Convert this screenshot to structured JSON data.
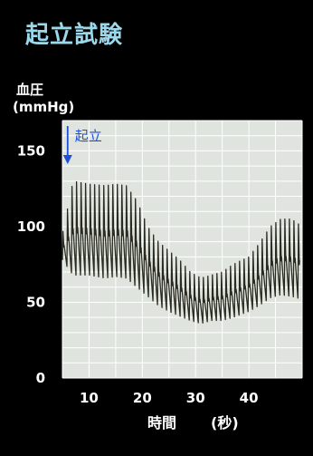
{
  "title": "起立試験",
  "colors": {
    "background": "#000000",
    "title": "#9cd8ec",
    "plot_background": "#dfe4df",
    "grid": "#ffffff",
    "trace": "#2a2a20",
    "annotation": "#1f4fd8"
  },
  "chart_data": {
    "type": "line",
    "ylabel_line1": "血圧",
    "ylabel_line2": "(mmHg)",
    "xlabel": "時間",
    "xunit": "(秒)",
    "xlim": [
      5,
      50
    ],
    "ylim": [
      0,
      170
    ],
    "xticks": [
      10,
      20,
      30,
      40
    ],
    "yticks": [
      0,
      50,
      100,
      150
    ],
    "grid": true,
    "annotation": {
      "text": "起立",
      "x": 7,
      "arrow": "down"
    },
    "series": [
      {
        "type": "pulsatile-envelope",
        "x_envelope": [
          5,
          7,
          10,
          13,
          15,
          17,
          19,
          21,
          23,
          25,
          27,
          29,
          31,
          33,
          35,
          37,
          40,
          42,
          44,
          46,
          48,
          50
        ],
        "systolic": [
          95,
          130,
          128,
          127,
          128,
          127,
          117,
          100,
          90,
          84,
          78,
          70,
          66,
          68,
          70,
          75,
          80,
          89,
          100,
          105,
          105,
          100
        ],
        "diastolic": [
          78,
          68,
          68,
          66,
          67,
          66,
          60,
          54,
          48,
          44,
          41,
          38,
          36,
          38,
          38,
          40,
          44,
          48,
          53,
          55,
          54,
          52
        ],
        "beat_interval_s": 0.85
      }
    ]
  }
}
